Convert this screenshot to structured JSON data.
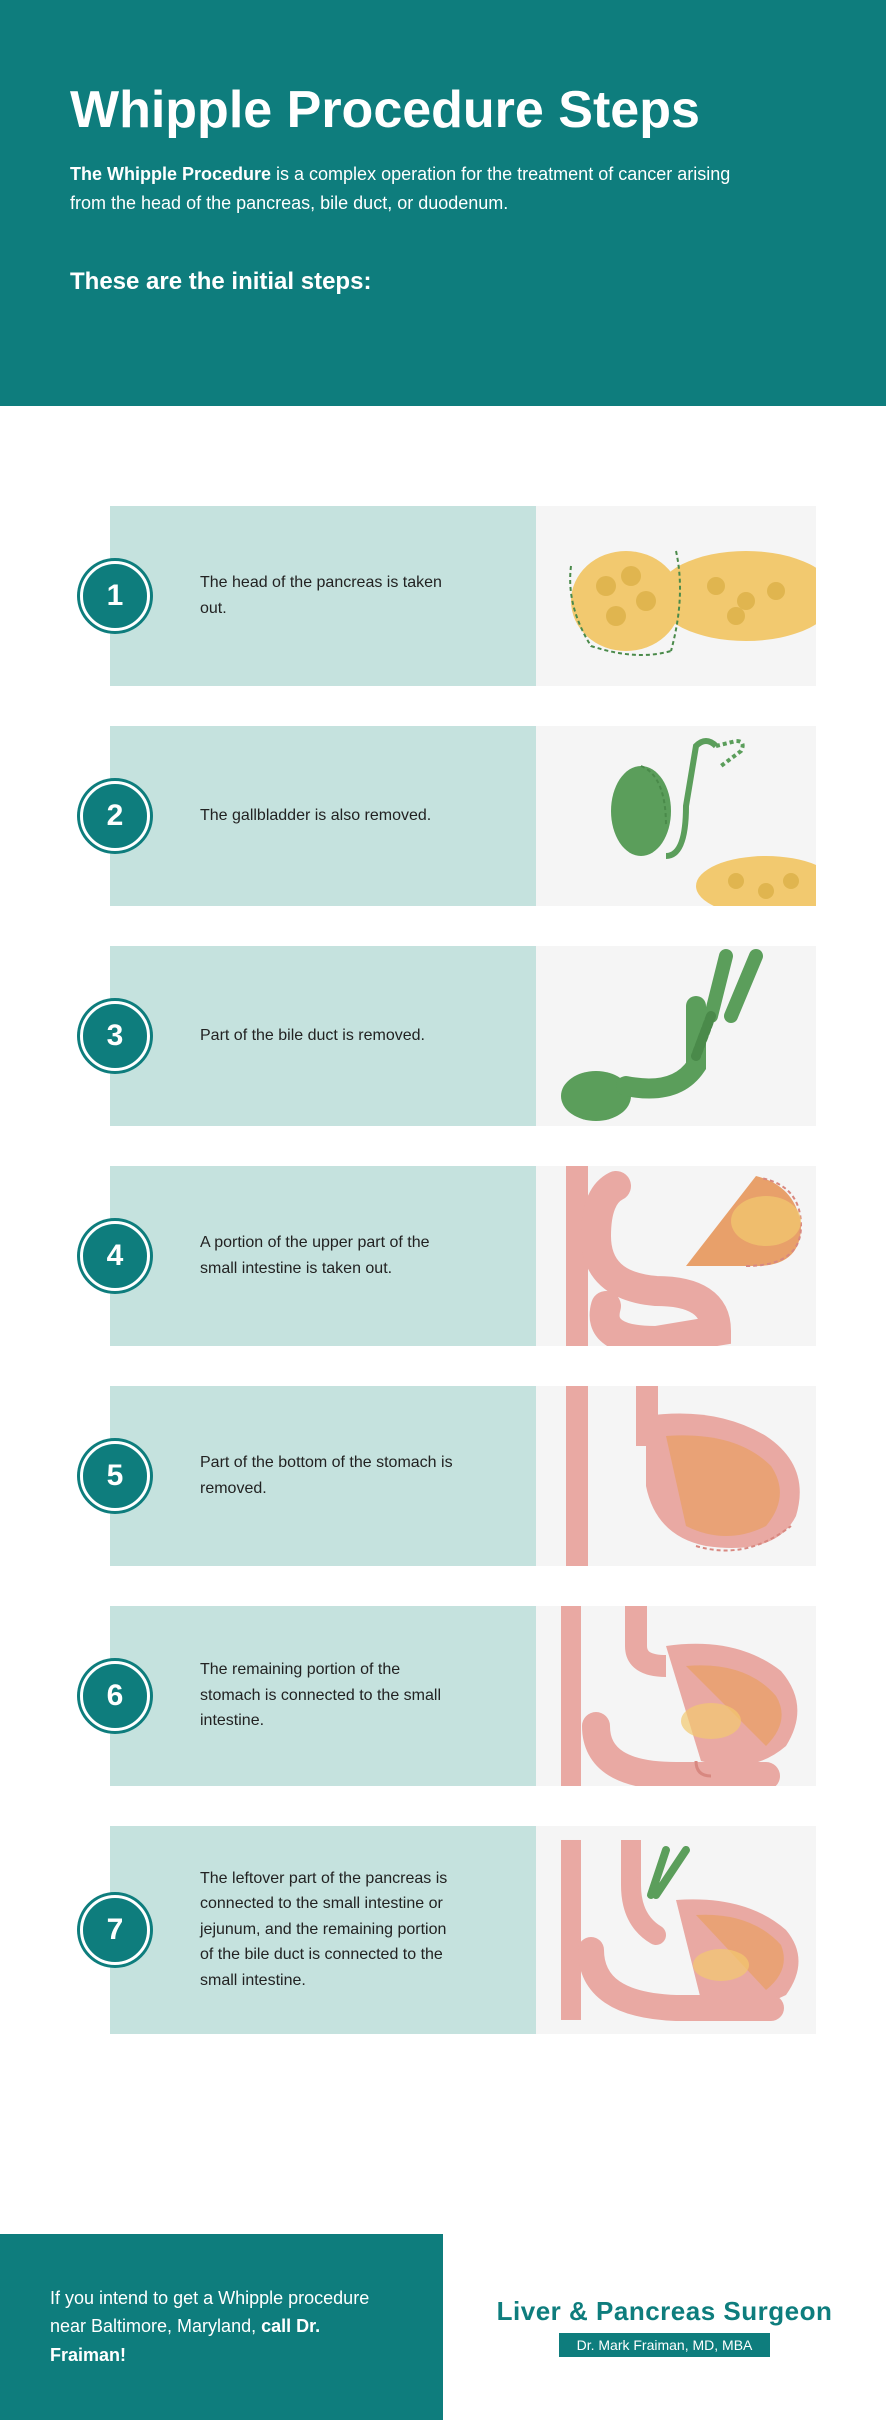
{
  "header": {
    "title": "Whipple Procedure Steps",
    "intro_bold": "The Whipple Procedure",
    "intro_rest": " is a complex operation for the treatment of cancer arising from the head of the pancreas, bile duct, or duodenum.",
    "subtitle": "These are the initial steps:"
  },
  "colors": {
    "teal": "#0e7d7d",
    "pale_teal": "#c5e2de",
    "illus_bg": "#f5f5f5",
    "organ_yellow": "#f2c96f",
    "organ_yellow_dark": "#e0b54f",
    "organ_green": "#5b9e5b",
    "organ_green_dark": "#4a8a4a",
    "organ_pink": "#e9a9a3",
    "organ_pink_dark": "#d88880",
    "organ_orange": "#e8a06a"
  },
  "steps": [
    {
      "n": "1",
      "text": "The head of the pancreas is taken out.",
      "illus": "pancreas"
    },
    {
      "n": "2",
      "text": "The gallbladder is also removed.",
      "illus": "gallbladder"
    },
    {
      "n": "3",
      "text": "Part of the bile duct is removed.",
      "illus": "bileduct"
    },
    {
      "n": "4",
      "text": "A portion of the upper part of the small intestine is taken out.",
      "illus": "intestine"
    },
    {
      "n": "5",
      "text": "Part of the bottom of the stomach is removed.",
      "illus": "stomach"
    },
    {
      "n": "6",
      "text": "The remaining portion of the stomach is connected to the small intestine.",
      "illus": "connect1"
    },
    {
      "n": "7",
      "text": "The leftover part of the pancreas is connected to the small intestine or jejunum, and the remaining portion of the bile duct is connected to the small intestine.",
      "illus": "connect2"
    }
  ],
  "footer": {
    "cta_pre": "If you intend to get a Whipple procedure near Baltimore, Maryland, ",
    "cta_bold": "call Dr. Fraiman!",
    "brand": "Liver & Pancreas Surgeon",
    "doctor": "Dr. Mark Fraiman, MD, MBA"
  }
}
